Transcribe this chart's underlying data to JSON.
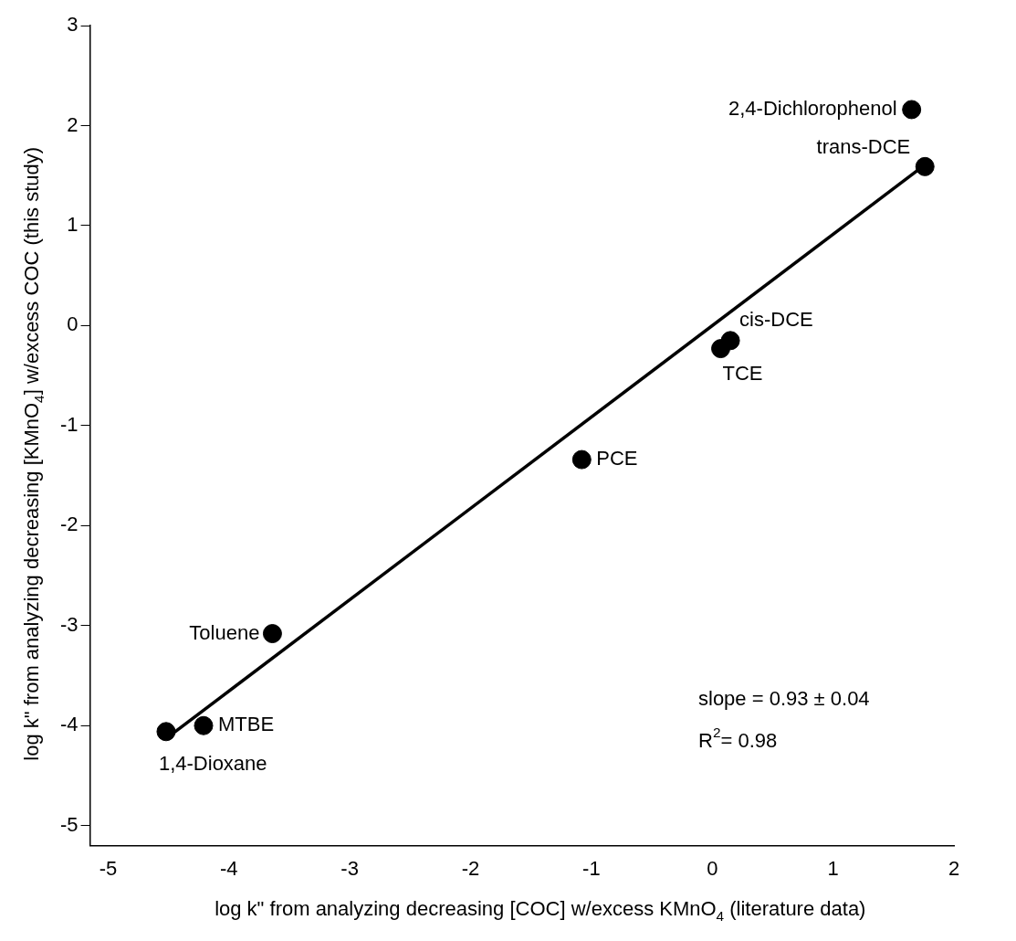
{
  "chart_data": {
    "type": "scatter",
    "xlabel": "log k\" from analyzing decreasing [COC] w/excess KMnO$_{4}$ (literature data)",
    "ylabel": "log k\" from analyzing decreasing [KMnO$_{4}$] w/excess COC (this study)",
    "xlim": [
      -5.15,
      2
    ],
    "ylim": [
      -5.2,
      3
    ],
    "xticks": [
      -5,
      -4,
      -3,
      -2,
      -1,
      0,
      1,
      2
    ],
    "yticks": [
      -5,
      -4,
      -3,
      -2,
      -1,
      0,
      1,
      2,
      3
    ],
    "grid": false,
    "legend": false,
    "series": [
      {
        "marker": "circle",
        "color": "#000000",
        "x": [
          1.65,
          1.76,
          0.15,
          0.07,
          -1.08,
          -3.64,
          -4.21,
          -4.52
        ],
        "values": [
          2.16,
          1.59,
          -0.15,
          -0.23,
          -1.34,
          -3.08,
          -4.0,
          -4.06
        ]
      },
      {
        "type": "line",
        "color": "#000000",
        "x": [
          -4.52,
          1.73
        ],
        "values": [
          -4.13,
          1.58
        ]
      }
    ],
    "annotations": [
      {
        "text": "2,4-Dichlorophenol",
        "x": 1.65,
        "y": 2.16
      },
      {
        "text": "trans-DCE",
        "x": 1.76,
        "y": 1.59
      },
      {
        "text": "cis-DCE",
        "x": 0.15,
        "y": -0.15
      },
      {
        "text": "TCE",
        "x": 0.07,
        "y": -0.23
      },
      {
        "text": "PCE",
        "x": -1.08,
        "y": -1.34
      },
      {
        "text": "Toluene",
        "x": -3.64,
        "y": -3.08
      },
      {
        "text": "MTBE",
        "x": -4.21,
        "y": -4.0
      },
      {
        "text": "1,4-Dioxane",
        "x": -4.52,
        "y": -4.06
      },
      "slope = 0.93 ± 0.04",
      "R$^{2}$= 0.98"
    ]
  }
}
